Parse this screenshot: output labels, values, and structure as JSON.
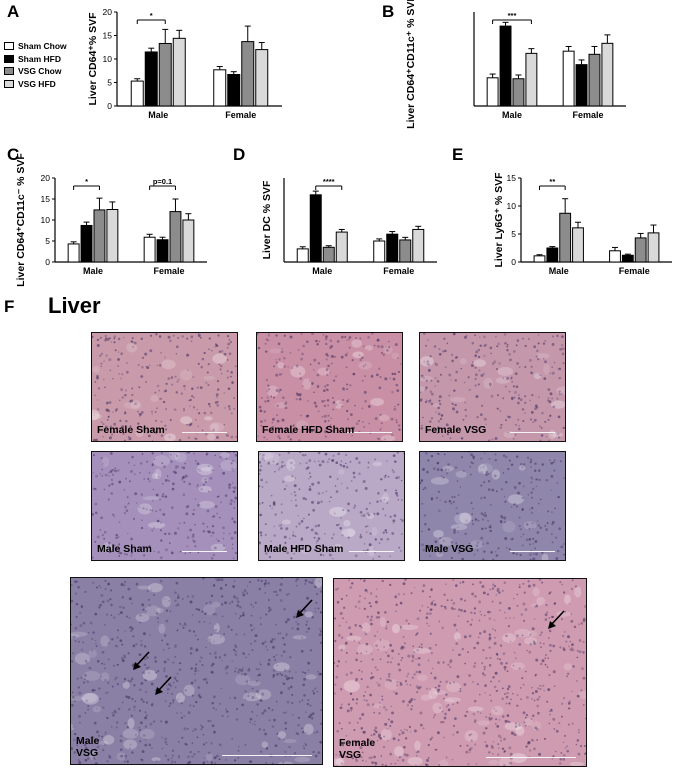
{
  "legend": [
    {
      "name": "Sham Chow",
      "color": "#ffffff"
    },
    {
      "name": "Sham HFD",
      "color": "#000000"
    },
    {
      "name": "VSG Chow",
      "color": "#8c8c8c"
    },
    {
      "name": "VSG HFD",
      "color": "#d9d9d9"
    }
  ],
  "chart_data": [
    {
      "panel": "A",
      "type": "bar",
      "ylabel": "Liver CD64⁺% SVF",
      "categories": [
        "Male",
        "Female"
      ],
      "ylim": [
        0,
        20
      ],
      "yticks": [
        0,
        5,
        10,
        15,
        20
      ],
      "series": [
        {
          "name": "Sham Chow",
          "values": [
            5.3,
            7.7
          ],
          "errors": [
            0.5,
            0.7
          ]
        },
        {
          "name": "Sham HFD",
          "values": [
            11.5,
            6.7
          ],
          "errors": [
            0.8,
            0.6
          ]
        },
        {
          "name": "VSG Chow",
          "values": [
            13.3,
            13.7
          ],
          "errors": [
            3.0,
            3.3
          ]
        },
        {
          "name": "VSG HFD",
          "values": [
            14.4,
            12.0
          ],
          "errors": [
            1.7,
            1.5
          ]
        }
      ],
      "brackets": [
        {
          "category": 0,
          "from": 0,
          "to": 2,
          "label": "*"
        }
      ]
    },
    {
      "panel": "B",
      "type": "bar",
      "ylabel": "Liver CD64⁺CD11c⁺ % SVF",
      "categories": [
        "Male",
        "Female"
      ],
      "ylim": [
        0,
        3.0
      ],
      "yticks": [],
      "series": [
        {
          "name": "Sham Chow",
          "values": [
            0.9,
            1.75
          ],
          "errors": [
            0.12,
            0.15
          ]
        },
        {
          "name": "Sham HFD",
          "values": [
            2.55,
            1.32
          ],
          "errors": [
            0.12,
            0.15
          ]
        },
        {
          "name": "VSG Chow",
          "values": [
            0.87,
            1.65
          ],
          "errors": [
            0.12,
            0.25
          ]
        },
        {
          "name": "VSG HFD",
          "values": [
            1.68,
            2.0
          ],
          "errors": [
            0.15,
            0.27
          ]
        }
      ],
      "brackets": [
        {
          "category": 0,
          "from": 0,
          "to": 3,
          "label": "***"
        }
      ]
    },
    {
      "panel": "C",
      "type": "bar",
      "ylabel": "Liver CD64⁺CD11c⁻ % SVF",
      "categories": [
        "Male",
        "Female"
      ],
      "ylim": [
        0,
        20
      ],
      "yticks": [
        0,
        5,
        10,
        15,
        20
      ],
      "series": [
        {
          "name": "Sham Chow",
          "values": [
            4.3,
            5.9
          ],
          "errors": [
            0.5,
            0.7
          ]
        },
        {
          "name": "Sham HFD",
          "values": [
            8.7,
            5.3
          ],
          "errors": [
            0.8,
            0.6
          ]
        },
        {
          "name": "VSG Chow",
          "values": [
            12.4,
            12.0
          ],
          "errors": [
            2.8,
            3.0
          ]
        },
        {
          "name": "VSG HFD",
          "values": [
            12.5,
            10.0
          ],
          "errors": [
            1.8,
            1.5
          ]
        }
      ],
      "brackets": [
        {
          "category": 0,
          "from": 0,
          "to": 2,
          "label": "*"
        },
        {
          "category": 1,
          "from": 0,
          "to": 2,
          "label": "p=0.1"
        }
      ]
    },
    {
      "panel": "D",
      "type": "bar",
      "ylabel": "Liver DC % SVF",
      "categories": [
        "Male",
        "Female"
      ],
      "ylim": [
        0,
        8
      ],
      "yticks": [],
      "series": [
        {
          "name": "Sham Chow",
          "values": [
            1.25,
            2.0
          ],
          "errors": [
            0.2,
            0.2
          ]
        },
        {
          "name": "Sham HFD",
          "values": [
            6.4,
            2.65
          ],
          "errors": [
            0.35,
            0.25
          ]
        },
        {
          "name": "VSG Chow",
          "values": [
            1.4,
            2.1
          ],
          "errors": [
            0.15,
            0.25
          ]
        },
        {
          "name": "VSG HFD",
          "values": [
            2.85,
            3.1
          ],
          "errors": [
            0.25,
            0.3
          ]
        }
      ],
      "brackets": [
        {
          "category": 0,
          "from": 1,
          "to": 3,
          "label": "****"
        }
      ]
    },
    {
      "panel": "E",
      "type": "bar",
      "ylabel": "Liver Ly6G⁺ % SVF",
      "categories": [
        "Male",
        "Female"
      ],
      "ylim": [
        0,
        15
      ],
      "yticks": [
        0,
        5,
        10,
        15
      ],
      "series": [
        {
          "name": "Sham Chow",
          "values": [
            1.1,
            2.0
          ],
          "errors": [
            0.2,
            0.6
          ]
        },
        {
          "name": "Sham HFD",
          "values": [
            2.5,
            1.2
          ],
          "errors": [
            0.25,
            0.2
          ]
        },
        {
          "name": "VSG Chow",
          "values": [
            8.7,
            4.3
          ],
          "errors": [
            2.6,
            0.8
          ]
        },
        {
          "name": "VSG HFD",
          "values": [
            6.1,
            5.2
          ],
          "errors": [
            1.0,
            1.4
          ]
        }
      ],
      "brackets": [
        {
          "category": 0,
          "from": 0,
          "to": 2,
          "label": "**"
        }
      ]
    }
  ],
  "panel_letters": [
    "A",
    "B",
    "C",
    "D",
    "E",
    "F"
  ],
  "liver_title": "Liver",
  "micrographs": [
    {
      "label": "Female Sham",
      "tone": "#c99aaa"
    },
    {
      "label": "Female HFD Sham",
      "tone": "#c98fa4"
    },
    {
      "label": "Female VSG",
      "tone": "#c497ab"
    },
    {
      "label": "Male Sham",
      "tone": "#a490ba"
    },
    {
      "label": "Male HFD Sham",
      "tone": "#b9a8c6"
    },
    {
      "label": "Male VSG",
      "tone": "#8f86ab"
    },
    {
      "label": "Male\nVSG",
      "tone": "#8a7fa5"
    },
    {
      "label": "Female\nVSG",
      "tone": "#cf9bb0"
    }
  ]
}
